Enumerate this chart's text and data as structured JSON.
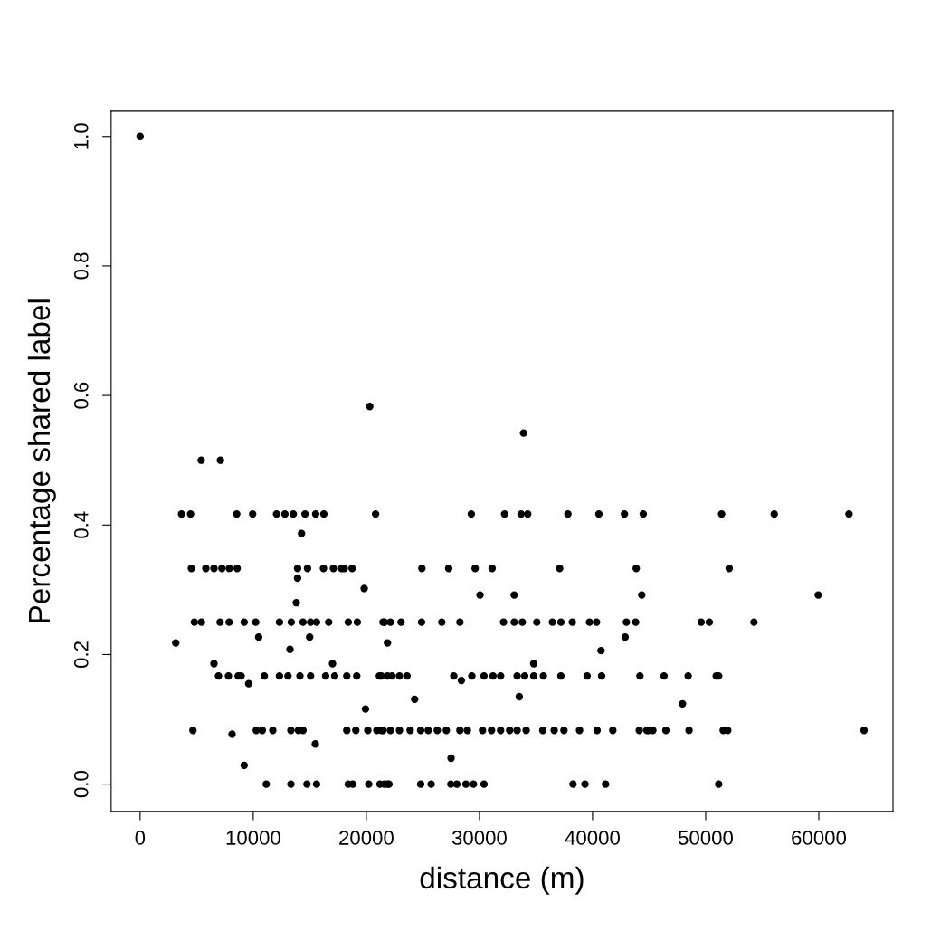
{
  "chart_data": {
    "type": "scatter",
    "xlabel": "distance (m)",
    "ylabel": "Percentage shared label",
    "xlim": [
      -2560,
      66560
    ],
    "ylim": [
      -0.042,
      1.039
    ],
    "xticks": [
      0,
      10000,
      20000,
      30000,
      40000,
      50000,
      60000
    ],
    "yticks": [
      {
        "value": 0,
        "label": "0.0"
      },
      0.2,
      0.4,
      0.6,
      0.8,
      {
        "value": 1,
        "label": "1.0"
      }
    ],
    "marker": "circle",
    "grid": false,
    "series": [
      {
        "color": "#000000",
        "x": [
          0,
          20300,
          33900,
          5400,
          7100,
          3660,
          4460,
          8540,
          9950,
          12060,
          12800,
          13540,
          14580,
          15520,
          16240,
          20820,
          29280,
          32220,
          33680,
          34270,
          37820,
          40560,
          42820,
          44480,
          51410,
          56060,
          62670,
          14270,
          4530,
          5810,
          6530,
          7230,
          7890,
          8580,
          13920,
          14800,
          16210,
          17090,
          17810,
          18050,
          18740,
          24910,
          27280,
          29620,
          31120,
          37090,
          43860,
          52080,
          13920,
          19810,
          30050,
          33070,
          44350,
          59950,
          13810,
          4800,
          5420,
          7070,
          7870,
          9200,
          10220,
          12320,
          13360,
          14400,
          15070,
          15600,
          16670,
          18400,
          19200,
          21600,
          21470,
          22130,
          23070,
          24880,
          26670,
          28270,
          32130,
          33070,
          33790,
          35070,
          36450,
          37200,
          38210,
          39730,
          40350,
          42990,
          43810,
          49600,
          50320,
          54270,
          10480,
          14990,
          42880,
          3150,
          21870,
          13250,
          40750,
          6530,
          17010,
          34800,
          6930,
          7810,
          8670,
          8930,
          10980,
          12320,
          13070,
          14130,
          15070,
          16400,
          17200,
          18270,
          19150,
          21150,
          21870,
          9600,
          21330,
          22270,
          22930,
          23600,
          27730,
          28400,
          29330,
          30400,
          31200,
          31870,
          33330,
          34000,
          34800,
          35650,
          37200,
          39520,
          40800,
          44190,
          46320,
          48450,
          50930,
          51150,
          33520,
          19920,
          24270,
          47950,
          4670,
          8130,
          10270,
          10800,
          11730,
          13330,
          14000,
          14400,
          18270,
          19070,
          20130,
          20930,
          21470,
          21330,
          22130,
          22930,
          23870,
          24800,
          25470,
          26270,
          27070,
          28270,
          28930,
          30270,
          31070,
          31870,
          32670,
          33330,
          34130,
          35600,
          36610,
          37470,
          38850,
          40400,
          41790,
          44130,
          44930,
          44800,
          45330,
          46480,
          48530,
          51550,
          51950,
          64000,
          15490,
          9200,
          27490,
          11150,
          13330,
          14750,
          15600,
          18400,
          18800,
          20210,
          21200,
          21870,
          21600,
          22000,
          24800,
          25730,
          27470,
          28000,
          28800,
          29470,
          30400,
          38270,
          39330,
          41150,
          51150
        ],
        "values": [
          1.0,
          0.583,
          0.542,
          0.5,
          0.5,
          0.417,
          0.417,
          0.417,
          0.417,
          0.417,
          0.417,
          0.417,
          0.417,
          0.417,
          0.417,
          0.417,
          0.417,
          0.417,
          0.417,
          0.417,
          0.417,
          0.417,
          0.417,
          0.417,
          0.417,
          0.417,
          0.417,
          0.387,
          0.333,
          0.333,
          0.333,
          0.333,
          0.333,
          0.333,
          0.333,
          0.333,
          0.333,
          0.333,
          0.333,
          0.333,
          0.333,
          0.333,
          0.333,
          0.333,
          0.333,
          0.333,
          0.333,
          0.333,
          0.318,
          0.302,
          0.292,
          0.292,
          0.292,
          0.292,
          0.28,
          0.25,
          0.25,
          0.25,
          0.25,
          0.25,
          0.25,
          0.25,
          0.25,
          0.25,
          0.25,
          0.25,
          0.25,
          0.25,
          0.25,
          0.25,
          0.25,
          0.25,
          0.25,
          0.25,
          0.25,
          0.25,
          0.25,
          0.25,
          0.25,
          0.25,
          0.25,
          0.25,
          0.25,
          0.25,
          0.25,
          0.25,
          0.25,
          0.25,
          0.25,
          0.25,
          0.227,
          0.227,
          0.227,
          0.218,
          0.218,
          0.208,
          0.206,
          0.186,
          0.186,
          0.186,
          0.167,
          0.167,
          0.167,
          0.167,
          0.167,
          0.167,
          0.167,
          0.167,
          0.167,
          0.167,
          0.167,
          0.167,
          0.167,
          0.167,
          0.167,
          0.155,
          0.167,
          0.167,
          0.167,
          0.167,
          0.167,
          0.16,
          0.167,
          0.167,
          0.167,
          0.167,
          0.167,
          0.167,
          0.167,
          0.167,
          0.167,
          0.167,
          0.167,
          0.167,
          0.167,
          0.167,
          0.167,
          0.167,
          0.135,
          0.116,
          0.131,
          0.124,
          0.083,
          0.077,
          0.083,
          0.083,
          0.083,
          0.083,
          0.083,
          0.083,
          0.083,
          0.083,
          0.083,
          0.083,
          0.083,
          0.083,
          0.083,
          0.083,
          0.083,
          0.083,
          0.083,
          0.083,
          0.083,
          0.083,
          0.083,
          0.083,
          0.083,
          0.083,
          0.083,
          0.083,
          0.083,
          0.083,
          0.083,
          0.083,
          0.083,
          0.083,
          0.083,
          0.083,
          0.083,
          0.083,
          0.083,
          0.083,
          0.083,
          0.083,
          0.083,
          0.083,
          0.062,
          0.029,
          0.04,
          0,
          0,
          0,
          0,
          0,
          0,
          0,
          0,
          0,
          0,
          0,
          0,
          0,
          0,
          0,
          0,
          0,
          0,
          0,
          0,
          0,
          0
        ]
      }
    ]
  }
}
